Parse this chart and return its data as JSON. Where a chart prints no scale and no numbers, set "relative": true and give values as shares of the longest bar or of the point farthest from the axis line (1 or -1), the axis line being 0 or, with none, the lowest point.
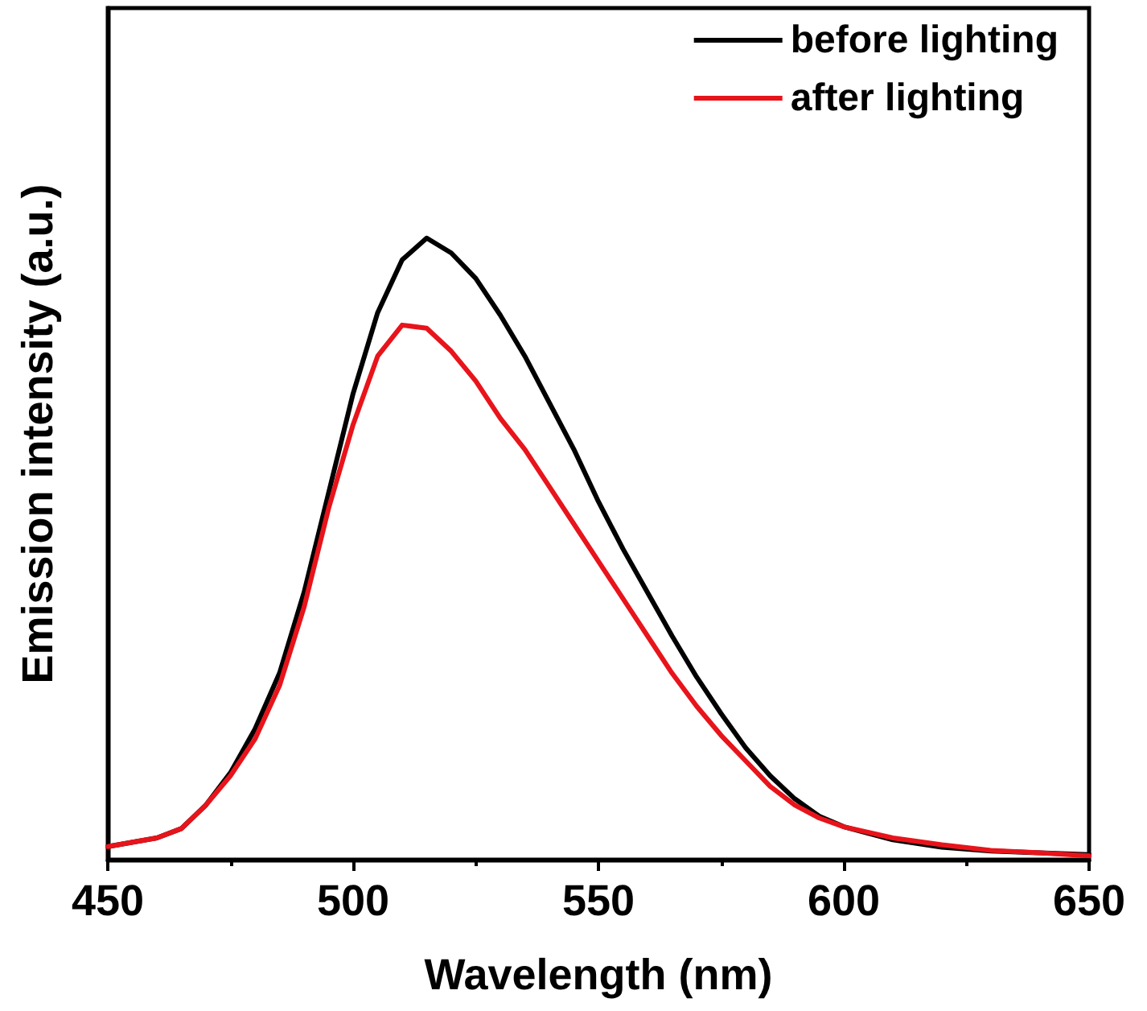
{
  "chart_data": {
    "type": "line",
    "relative": true,
    "xlabel": "Wavelength (nm)",
    "ylabel": "Emission intensity (a.u.)",
    "xlim": [
      450,
      650
    ],
    "xticks": [
      450,
      500,
      550,
      600,
      650
    ],
    "legend": "top right",
    "marker": "none",
    "line_style": "solid",
    "grid": false,
    "x": [
      450,
      460,
      465,
      470,
      475,
      480,
      485,
      490,
      495,
      500,
      505,
      510,
      515,
      520,
      525,
      530,
      535,
      540,
      545,
      550,
      555,
      560,
      565,
      570,
      575,
      580,
      585,
      590,
      595,
      600,
      610,
      620,
      630,
      640,
      650
    ],
    "series": [
      {
        "name": "before lighting",
        "color": "#000000",
        "values": [
          0.021,
          0.035,
          0.05,
          0.088,
          0.14,
          0.21,
          0.3,
          0.43,
          0.59,
          0.75,
          0.88,
          0.965,
          1.0,
          0.976,
          0.935,
          0.876,
          0.81,
          0.735,
          0.66,
          0.576,
          0.5,
          0.43,
          0.36,
          0.294,
          0.235,
          0.18,
          0.135,
          0.098,
          0.07,
          0.053,
          0.032,
          0.02,
          0.014,
          0.011,
          0.008
        ]
      },
      {
        "name": "after lighting",
        "color": "#e8141b",
        "values": [
          0.021,
          0.035,
          0.05,
          0.088,
          0.135,
          0.194,
          0.28,
          0.406,
          0.565,
          0.7,
          0.81,
          0.86,
          0.855,
          0.818,
          0.77,
          0.71,
          0.66,
          0.6,
          0.54,
          0.48,
          0.42,
          0.36,
          0.3,
          0.247,
          0.2,
          0.159,
          0.118,
          0.088,
          0.067,
          0.053,
          0.035,
          0.024,
          0.015,
          0.011,
          0.006
        ]
      }
    ]
  }
}
